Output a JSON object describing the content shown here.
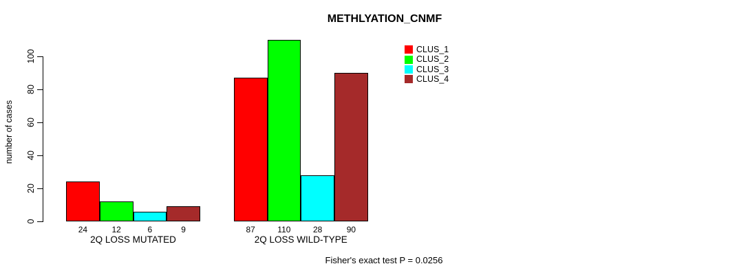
{
  "chart_data": {
    "type": "bar",
    "title": "METHLYATION_CNMF",
    "ylabel": "number of cases",
    "xlabel": "",
    "categories": [
      "2Q LOSS MUTATED",
      "2Q LOSS WILD-TYPE"
    ],
    "series": [
      {
        "name": "CLUS_1",
        "color": "#ff0000",
        "values": [
          24,
          87
        ]
      },
      {
        "name": "CLUS_2",
        "color": "#00ff00",
        "values": [
          12,
          110
        ]
      },
      {
        "name": "CLUS_3",
        "color": "#00ffff",
        "values": [
          6,
          28
        ]
      },
      {
        "name": "CLUS_4",
        "color": "#a52a2a",
        "values": [
          9,
          90
        ]
      }
    ],
    "ylim": [
      0,
      110
    ],
    "yticks": [
      0,
      20,
      40,
      60,
      80,
      100
    ],
    "grid": false,
    "legend_position": "top-right",
    "bar_value_labels": true,
    "annotation": "Fisher's exact test P = 0.0256"
  }
}
